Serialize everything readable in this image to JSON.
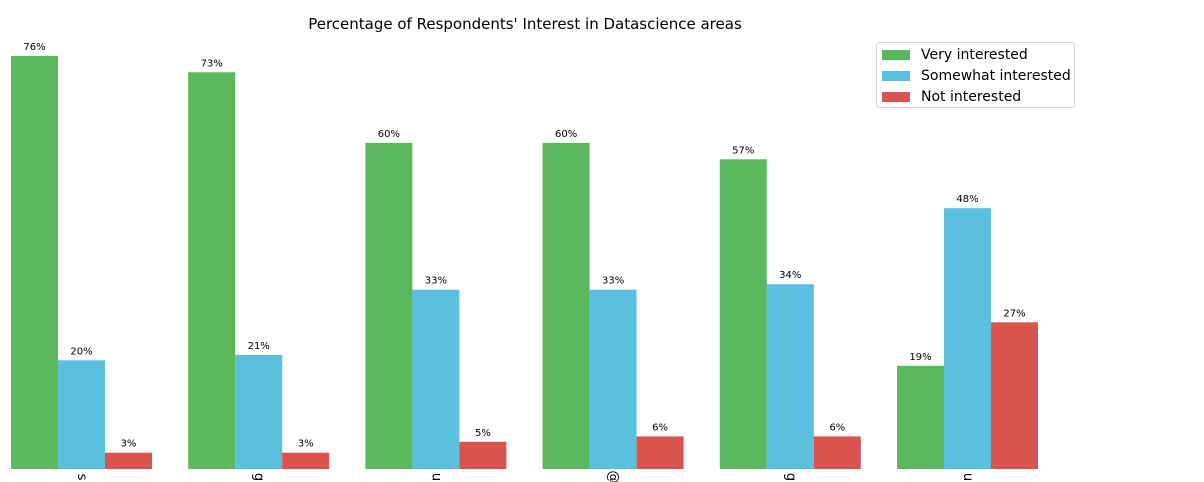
{
  "chart_data": {
    "type": "bar",
    "title": "Percentage of Respondents' Interest in Datascience areas",
    "xlabel": "",
    "ylabel": "",
    "ylim": [
      0,
      76
    ],
    "categories": [
      "",
      "",
      "",
      "",
      "",
      ""
    ],
    "tick_glyphs": [
      "s",
      "g",
      "u",
      "@",
      "g",
      "u"
    ],
    "series": [
      {
        "name": "Very interested",
        "color": "#5cb85c",
        "values": [
          76,
          73,
          60,
          60,
          57,
          19
        ],
        "labels": [
          "76%",
          "73%",
          "60%",
          "60%",
          "57%",
          "19%"
        ]
      },
      {
        "name": "Somewhat interested",
        "color": "#5bc0de",
        "values": [
          20,
          21,
          33,
          33,
          34,
          48
        ],
        "labels": [
          "20%",
          "21%",
          "33%",
          "33%",
          "34%",
          "48%"
        ]
      },
      {
        "name": "Not interested",
        "color": "#d9534f",
        "values": [
          3,
          3,
          5,
          6,
          6,
          27
        ],
        "labels": [
          "3%",
          "3%",
          "5%",
          "6%",
          "6%",
          "27%"
        ]
      }
    ],
    "grid": false,
    "legend_position": "top-right"
  }
}
